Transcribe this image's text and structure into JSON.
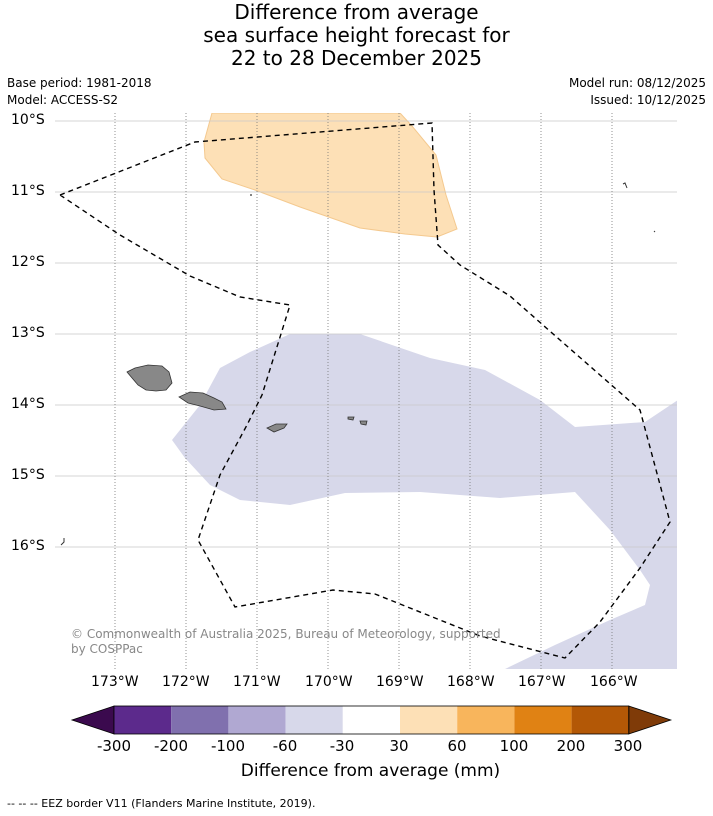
{
  "title": {
    "line1": "Difference from average",
    "line2": "sea surface height forecast for",
    "line3": "22 to 28 December 2025"
  },
  "meta": {
    "base_period": "Base period: 1981-2018",
    "model": "Model: ACCESS-S2",
    "model_run": "Model run: 08/12/2025",
    "issued": "Issued: 10/12/2025"
  },
  "map": {
    "lat_labels": [
      "10°S",
      "11°S",
      "12°S",
      "13°S",
      "14°S",
      "15°S",
      "16°S"
    ],
    "lon_labels": [
      "173°W",
      "172°W",
      "171°W",
      "170°W",
      "169°W",
      "168°W",
      "167°W",
      "166°W"
    ],
    "copyright_line1": "© Commonwealth of Australia 2025, Bureau of Meteorology, supported",
    "copyright_line2": "by COSPPac"
  },
  "colorbar": {
    "title": "Difference from average (mm)",
    "tick_labels": [
      "-300",
      "-200",
      "-100",
      "-60",
      "-30",
      "30",
      "60",
      "100",
      "200",
      "300"
    ],
    "colors": [
      "#3b0a4e",
      "#5c2a8c",
      "#8070ae",
      "#b0a8d2",
      "#d7d8ea",
      "#ffffff",
      "#fde0b6",
      "#f8b55c",
      "#e08214",
      "#b35806",
      "#7f3b08"
    ]
  },
  "footer": {
    "legend": "--  --  -- EEZ border V11 (Flanders Marine Institute, 2019)."
  }
}
